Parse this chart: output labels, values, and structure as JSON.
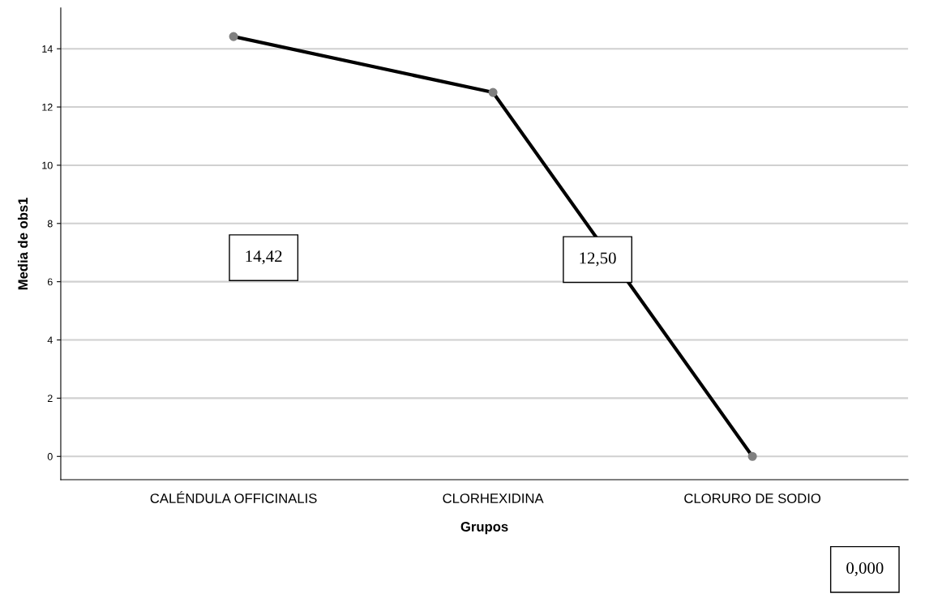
{
  "chart_data": {
    "type": "line",
    "xlabel": "Grupos",
    "ylabel": "Media de obs1",
    "categories": [
      "CALÉNDULA OFFICINALIS",
      "CLORHEXIDINA",
      "CLORURO DE SODIO"
    ],
    "series": [
      {
        "color": "#000000",
        "values": [
          14.42,
          12.5,
          0
        ]
      }
    ],
    "value_labels": [
      "14,42",
      "12,50",
      "0,000"
    ],
    "ylim": [
      -0.8,
      15.4
    ],
    "yticks": [
      0,
      2,
      4,
      6,
      8,
      10,
      12,
      14
    ],
    "grid": "y",
    "marker": "circle",
    "line_style": "solid"
  }
}
